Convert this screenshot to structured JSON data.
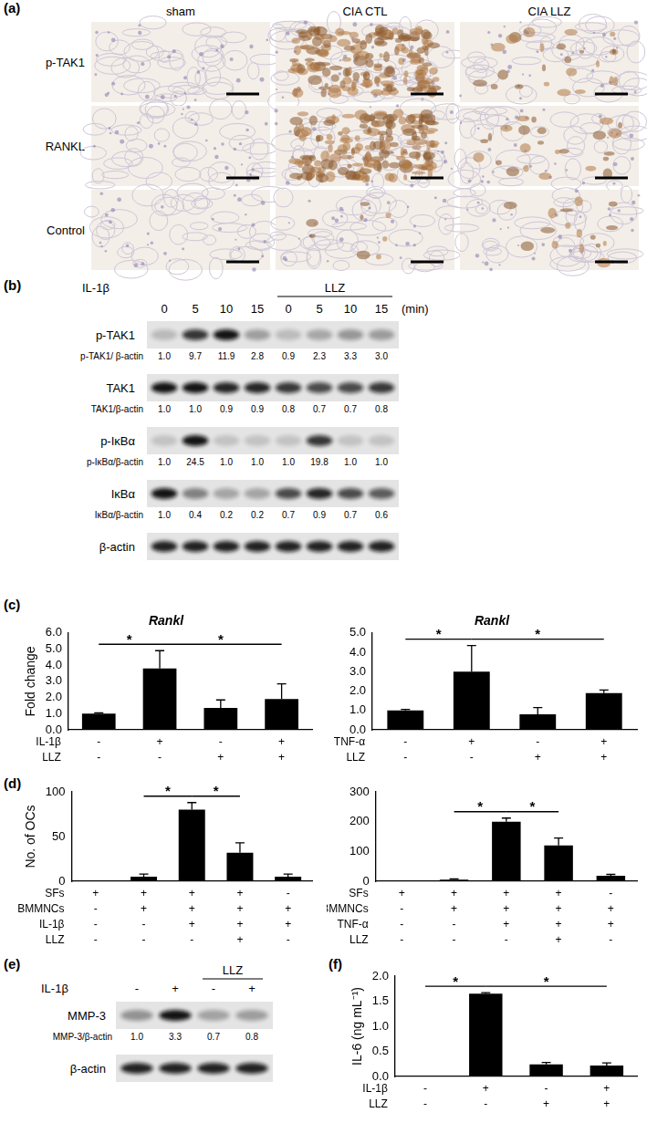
{
  "panel_labels": {
    "a": "(a)",
    "b": "(b)",
    "c": "(c)",
    "d": "(d)",
    "e": "(e)",
    "f": "(f)"
  },
  "panel_a": {
    "columns": [
      "sham",
      "CIA CTL",
      "CIA LLZ"
    ],
    "rows": [
      "p-TAK1",
      "RANKL",
      "Control"
    ]
  },
  "panel_b": {
    "treatment": "IL-1β",
    "inhibitor": "LLZ",
    "unit": "(min)",
    "lanes": [
      {
        "label": "0",
        "llz": false
      },
      {
        "label": "5",
        "llz": false
      },
      {
        "label": "10",
        "llz": false
      },
      {
        "label": "15",
        "llz": false
      },
      {
        "label": "0",
        "llz": true
      },
      {
        "label": "5",
        "llz": true
      },
      {
        "label": "10",
        "llz": true
      },
      {
        "label": "15",
        "llz": true
      }
    ],
    "rows": [
      {
        "name": "p-TAK1",
        "ratio_label": "p-TAK1/ β-actin",
        "values": [
          "1.0",
          "9.7",
          "11.9",
          "2.8",
          "0.9",
          "2.3",
          "3.3",
          "3.0"
        ]
      },
      {
        "name": "TAK1",
        "ratio_label": "TAK1/β-actin",
        "values": [
          "1.0",
          "1.0",
          "0.9",
          "0.9",
          "0.8",
          "0.7",
          "0.7",
          "0.8"
        ]
      },
      {
        "name": "p-IκBα",
        "ratio_label": "p-IκBα/β-actin",
        "values": [
          "1.0",
          "24.5",
          "1.0",
          "1.0",
          "1.0",
          "19.8",
          "1.0",
          "1.0"
        ]
      },
      {
        "name": "IκBα",
        "ratio_label": "IκBα/β-actin",
        "values": [
          "1.0",
          "0.4",
          "0.2",
          "0.2",
          "0.7",
          "0.9",
          "0.7",
          "0.6"
        ]
      },
      {
        "name": "β-actin"
      }
    ]
  },
  "panel_e": {
    "treatment": "IL-1β",
    "inhibitor": "LLZ",
    "lanes": [
      {
        "label": "-",
        "llz": false
      },
      {
        "label": "+",
        "llz": false
      },
      {
        "label": "-",
        "llz": true
      },
      {
        "label": "+",
        "llz": true
      }
    ],
    "rows": [
      {
        "name": "MMP-3",
        "ratio_label": "MMP-3/β-actin",
        "values": [
          "1.0",
          "3.3",
          "0.7",
          "0.8"
        ]
      },
      {
        "name": "β-actin"
      }
    ]
  },
  "chart_data": [
    {
      "type": "bar",
      "title": "Rankl",
      "y_label": "Fold change",
      "categories": [
        null,
        null,
        null,
        null
      ],
      "values": [
        1.0,
        3.8,
        1.35,
        1.9
      ],
      "errors": [
        0.05,
        1.1,
        0.5,
        0.95
      ],
      "color": "#000000",
      "ylim": [
        0,
        6
      ],
      "yticks": [
        {
          "value": 0,
          "label": "0.0"
        },
        {
          "value": 1,
          "label": "1.0"
        },
        {
          "value": 2,
          "label": "2.0"
        },
        {
          "value": 3,
          "label": "3.0"
        },
        {
          "value": 4,
          "label": "4.0"
        },
        {
          "value": 5,
          "label": "5.0"
        },
        {
          "value": 6,
          "label": "6.0"
        }
      ],
      "grid": false,
      "tick_labels": "y",
      "conditions": [
        {
          "name": "IL-1β",
          "values": [
            "-",
            "+",
            "-",
            "+"
          ]
        },
        {
          "name": "LLZ",
          "values": [
            "-",
            "-",
            "+",
            "+"
          ]
        }
      ],
      "annotations": [
        {
          "text": "*",
          "from": 0,
          "to": 1
        },
        {
          "text": "*",
          "from": 1,
          "to": 3
        }
      ]
    },
    {
      "type": "bar",
      "title": "Rankl",
      "categories": [
        null,
        null,
        null,
        null
      ],
      "values": [
        1.0,
        3.0,
        0.8,
        1.9
      ],
      "errors": [
        0.05,
        1.35,
        0.35,
        0.15
      ],
      "color": "#000000",
      "ylim": [
        0,
        5
      ],
      "yticks": [
        {
          "value": 0,
          "label": "0.0"
        },
        {
          "value": 1,
          "label": "1.0"
        },
        {
          "value": 2,
          "label": "2.0"
        },
        {
          "value": 3,
          "label": "3.0"
        },
        {
          "value": 4,
          "label": "4.0"
        },
        {
          "value": 5,
          "label": "5.0"
        }
      ],
      "grid": false,
      "tick_labels": "y",
      "conditions": [
        {
          "name": "TNF-α",
          "values": [
            "-",
            "+",
            "-",
            "+"
          ]
        },
        {
          "name": "LLZ",
          "values": [
            "-",
            "-",
            "+",
            "+"
          ]
        }
      ],
      "annotations": [
        {
          "text": "*",
          "from": 0,
          "to": 1
        },
        {
          "text": "*",
          "from": 1,
          "to": 3
        }
      ]
    },
    {
      "type": "bar",
      "y_label": "No. of OCs",
      "categories": [
        null,
        null,
        null,
        null,
        null
      ],
      "values": [
        0,
        5,
        80,
        32,
        5
      ],
      "errors": [
        0,
        3,
        8,
        11,
        3
      ],
      "color": "#000000",
      "ylim": [
        0,
        100
      ],
      "yticks": [
        0,
        50,
        100
      ],
      "grid": false,
      "tick_labels": "y",
      "conditions": [
        {
          "name": "SFs",
          "values": [
            "+",
            "+",
            "+",
            "+",
            "-"
          ]
        },
        {
          "name": "BMMNCs",
          "values": [
            "-",
            "+",
            "+",
            "+",
            "+"
          ]
        },
        {
          "name": "IL-1β",
          "values": [
            "-",
            "-",
            "+",
            "+",
            "+"
          ]
        },
        {
          "name": "LLZ",
          "values": [
            "-",
            "-",
            "-",
            "+",
            "-"
          ]
        }
      ],
      "annotations": [
        {
          "text": "*",
          "from": 1,
          "to": 2
        },
        {
          "text": "*",
          "from": 2,
          "to": 3
        }
      ]
    },
    {
      "type": "bar",
      "categories": [
        null,
        null,
        null,
        null,
        null
      ],
      "values": [
        0,
        5,
        200,
        120,
        18
      ],
      "errors": [
        0,
        3,
        12,
        25,
        5
      ],
      "color": "#000000",
      "ylim": [
        0,
        300
      ],
      "yticks": [
        0,
        100,
        200,
        300
      ],
      "grid": false,
      "tick_labels": "y",
      "conditions": [
        {
          "name": "SFs",
          "values": [
            "+",
            "+",
            "+",
            "+",
            "-"
          ]
        },
        {
          "name": "BMMNCs",
          "values": [
            "-",
            "+",
            "+",
            "+",
            "+"
          ]
        },
        {
          "name": "TNF-α",
          "values": [
            "-",
            "-",
            "+",
            "+",
            "+"
          ]
        },
        {
          "name": "LLZ",
          "values": [
            "-",
            "-",
            "-",
            "+",
            "-"
          ]
        }
      ],
      "annotations": [
        {
          "text": "*",
          "from": 1,
          "to": 2
        },
        {
          "text": "*",
          "from": 2,
          "to": 3
        }
      ]
    },
    {
      "type": "bar",
      "y_label": "IL-6 (ng mL⁻¹)",
      "categories": [
        null,
        null,
        null,
        null
      ],
      "values": [
        0,
        1.65,
        0.24,
        0.22
      ],
      "errors": [
        0,
        0.02,
        0.04,
        0.05
      ],
      "color": "#000000",
      "ylim": [
        0,
        2
      ],
      "yticks": [
        {
          "value": 0,
          "label": "0.0"
        },
        {
          "value": 0.5,
          "label": "0.5"
        },
        {
          "value": 1,
          "label": "1.0"
        },
        {
          "value": 1.5,
          "label": "1.5"
        },
        {
          "value": 2,
          "label": "2.0"
        }
      ],
      "grid": false,
      "tick_labels": "y",
      "conditions": [
        {
          "name": "IL-1β",
          "values": [
            "-",
            "+",
            "-",
            "+"
          ]
        },
        {
          "name": "LLZ",
          "values": [
            "-",
            "-",
            "+",
            "+"
          ]
        }
      ],
      "annotations": [
        {
          "text": "*",
          "from": 0,
          "to": 1
        },
        {
          "text": "*",
          "from": 1,
          "to": 3
        }
      ]
    }
  ]
}
